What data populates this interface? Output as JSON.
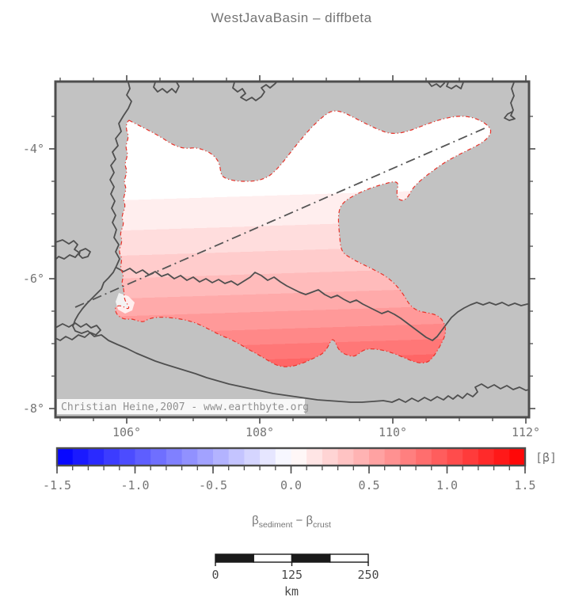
{
  "title": "WestJavaBasin – diffbeta",
  "map": {
    "attribution": "Christian Heine,2007 - www.earthbyte.org",
    "x_axis": {
      "major_ticks": [
        {
          "value": 106,
          "label": "106°"
        },
        {
          "value": 108,
          "label": "108°"
        },
        {
          "value": 110,
          "label": "110°"
        },
        {
          "value": 112,
          "label": "112°"
        }
      ],
      "minor_tick_values": [
        105,
        105.5,
        106.5,
        107,
        107.5,
        108.5,
        109,
        109.5,
        110.5,
        111,
        111.5
      ]
    },
    "y_axis": {
      "major_ticks": [
        {
          "value": -4,
          "label": "-4°"
        },
        {
          "value": -6,
          "label": "-6°"
        },
        {
          "value": -8,
          "label": "-8°"
        }
      ],
      "minor_tick_values": [
        -3.5,
        -4.5,
        -5,
        -5.5,
        -6.5,
        -7,
        -7.5
      ]
    }
  },
  "colorbar": {
    "min": -1.5,
    "max": 1.5,
    "cell_step": 0.1,
    "unit_label": "[β]",
    "major_ticks": [
      {
        "value": -1.5,
        "label": "-1.5"
      },
      {
        "value": -1.0,
        "label": "-1.0"
      },
      {
        "value": -0.5,
        "label": "-0.5"
      },
      {
        "value": 0.0,
        "label": "0.0"
      },
      {
        "value": 0.5,
        "label": "0.5"
      },
      {
        "value": 1.0,
        "label": "1.0"
      },
      {
        "value": 1.5,
        "label": "1.5"
      }
    ],
    "minor_tick_step": 0.1,
    "colors": {
      "negative_end": "#0000ff",
      "center": "#ffffff",
      "positive_end": "#ff0000"
    }
  },
  "quantity_label": {
    "beta1": "β",
    "sub1": "sediment",
    "operator": " − ",
    "beta2": "β",
    "sub2": "crust"
  },
  "scale_bar": {
    "tick_labels": [
      "0",
      "125",
      "250"
    ],
    "unit": "km",
    "segment_count": 4
  },
  "colors": {
    "map_background": "#c2c2c2",
    "coastline": "#4f4f4f",
    "frame": "#4d4d4d",
    "basin_outline": "#e8332a",
    "profile_line": "#555555",
    "label_text": "#757575",
    "title_text": "#737373",
    "attribution_text": "#909090",
    "attribution_background": "#f8f8f8",
    "scalebar_dark": "#1a1a1a"
  },
  "chart_data": {
    "type": "map",
    "title": "WestJavaBasin – diffbeta",
    "field": "β_sediment − β_crust (diffbeta)",
    "region": {
      "lon_range_deg": [
        104.9,
        112.0
      ],
      "lat_range_deg": [
        -8.1,
        -3.0
      ]
    },
    "lon_tick_labels": [
      "106°",
      "108°",
      "110°",
      "112°"
    ],
    "lat_tick_labels": [
      "-4°",
      "-6°",
      "-8°"
    ],
    "colorbar": {
      "range": [
        -1.5,
        1.5
      ],
      "cell_step": 0.1,
      "unit": "[β]",
      "colormap": "polar blue→white→red",
      "tick_labels": [
        "-1.5",
        "-1.0",
        "-0.5",
        "0.0",
        "0.5",
        "1.0",
        "1.5"
      ]
    },
    "basin_shading_value_range": [
      0.0,
      0.9
    ],
    "basin_gradient_note": "white (≈0) at NE tail, deepening pink southward, max red band ≈0.9 at south-central basin",
    "scale_bar": {
      "values_km": [
        0,
        125,
        250
      ],
      "unit": "km"
    },
    "overlays": [
      "red dash-dot basin outline",
      "gray dash-dot profile line SW→NE",
      "gray coastlines"
    ],
    "attribution": "Christian Heine,2007 - www.earthbyte.org"
  }
}
